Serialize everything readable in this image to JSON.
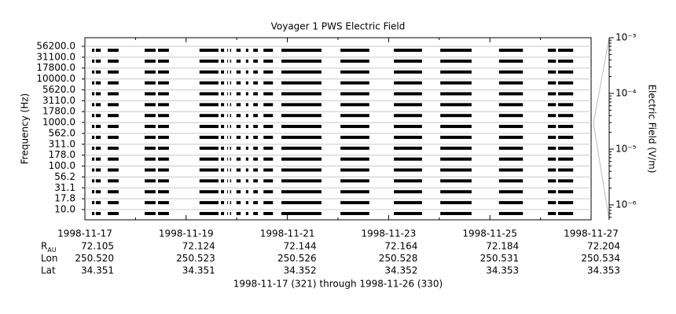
{
  "chart_data": {
    "type": "spectrogram",
    "title": "Voyager 1 PWS Electric Field",
    "ylabel": "Frequency (Hz)",
    "categories": [
      "10.0",
      "17.8",
      "31.1",
      "56.2",
      "100.0",
      "178.0",
      "311.0",
      "562.0",
      "1000.0",
      "1780.0",
      "3110.0",
      "5620.0",
      "10000.0",
      "17800.0",
      "31100.0",
      "56200.0"
    ],
    "xlim": [
      "1998-11-17",
      "1998-11-27"
    ],
    "xticks": [
      "1998-11-17",
      "1998-11-19",
      "1998-11-21",
      "1998-11-23",
      "1998-11-25",
      "1998-11-27"
    ],
    "coverage": [
      [
        "1998-11-17 03:20",
        "1998-11-17 04:30"
      ],
      [
        "1998-11-17 05:10",
        "1998-11-17 07:30"
      ],
      [
        "1998-11-17 10:50",
        "1998-11-17 16:00"
      ],
      [
        "1998-11-18 04:20",
        "1998-11-18 09:30"
      ],
      [
        "1998-11-18 10:40",
        "1998-11-18 15:50"
      ],
      [
        "1998-11-19 06:20",
        "1998-11-19 15:20"
      ],
      [
        "1998-11-19 16:30",
        "1998-11-19 18:00"
      ],
      [
        "1998-11-19 19:30",
        "1998-11-19 19:50"
      ],
      [
        "1998-11-19 20:50",
        "1998-11-19 21:20"
      ],
      [
        "1998-11-19 23:50",
        "1998-11-20 01:50"
      ],
      [
        "1998-11-20 04:20",
        "1998-11-20 05:30"
      ],
      [
        "1998-11-20 07:50",
        "1998-11-20 10:00"
      ],
      [
        "1998-11-20 12:40",
        "1998-11-20 17:10"
      ],
      [
        "1998-11-20 21:10",
        "1998-11-21 16:10"
      ],
      [
        "1998-11-22 01:10",
        "1998-11-22 14:50"
      ],
      [
        "1998-11-23 02:30",
        "1998-11-23 15:50"
      ],
      [
        "1998-11-24 00:30",
        "1998-11-24 15:20"
      ],
      [
        "1998-11-25 04:20",
        "1998-11-25 15:40"
      ],
      [
        "1998-11-26 03:30",
        "1998-11-26 07:20"
      ],
      [
        "1998-11-26 08:20",
        "1998-11-26 15:30"
      ]
    ],
    "ephemeris": [
      {
        "label": "R",
        "sub": "AU",
        "values": [
          "72.105",
          "72.124",
          "72.144",
          "72.164",
          "72.184",
          "72.204"
        ]
      },
      {
        "label": "Lon",
        "values": [
          "250.520",
          "250.523",
          "250.526",
          "250.528",
          "250.531",
          "250.534"
        ]
      },
      {
        "label": "Lat",
        "values": [
          "34.351",
          "34.351",
          "34.352",
          "34.352",
          "34.353",
          "34.353"
        ]
      }
    ],
    "xlabel": "1998-11-17 (321) through 1998-11-26 (330)",
    "y2label": "Electric Field (V/m)",
    "y2log": true,
    "y2lim": [
      5.4e-07,
      0.001
    ],
    "y2ticks": [
      {
        "value": 1e-06,
        "label": "10⁻⁶"
      },
      {
        "value": 1e-05,
        "label": "10⁻⁵"
      },
      {
        "value": 0.0001,
        "label": "10⁻⁴"
      },
      {
        "value": 0.001,
        "label": "10⁻³"
      }
    ],
    "color": "#000000"
  }
}
